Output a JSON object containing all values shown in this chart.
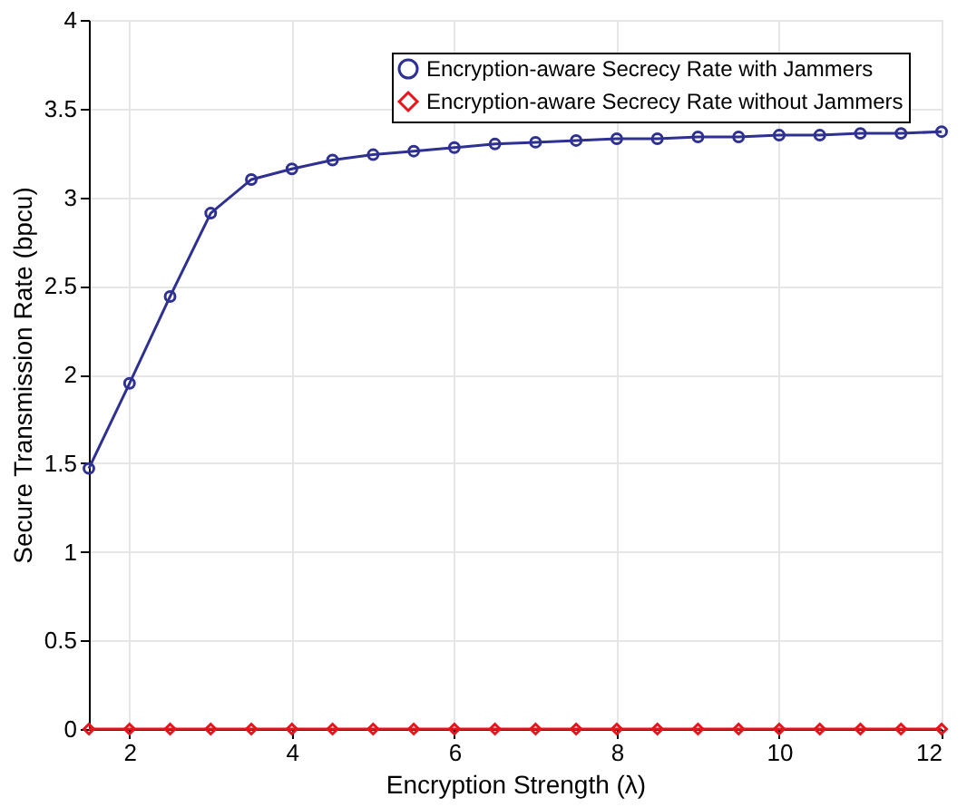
{
  "chart_data": {
    "type": "line",
    "xlabel": "Encryption Strength (λ)",
    "ylabel": "Secure Transmission Rate (bpcu)",
    "x": [
      1.5,
      2,
      2.5,
      3,
      3.5,
      4,
      4.5,
      5,
      5.5,
      6,
      6.5,
      7,
      7.5,
      8,
      8.5,
      9,
      9.5,
      10,
      10.5,
      11,
      11.5,
      12
    ],
    "series": [
      {
        "name": "Encryption-aware Secrecy Rate with Jammers",
        "color": "#2e3192",
        "marker": "circle",
        "values": [
          1.47,
          1.95,
          2.44,
          2.91,
          3.1,
          3.16,
          3.21,
          3.24,
          3.26,
          3.28,
          3.3,
          3.31,
          3.32,
          3.33,
          3.33,
          3.34,
          3.34,
          3.35,
          3.35,
          3.36,
          3.36,
          3.37
        ]
      },
      {
        "name": "Encryption-aware Secrecy Rate without Jammers",
        "color": "#e8141b",
        "marker": "diamond",
        "values": [
          0,
          0,
          0,
          0,
          0,
          0,
          0,
          0,
          0,
          0,
          0,
          0,
          0,
          0,
          0,
          0,
          0,
          0,
          0,
          0,
          0,
          0
        ]
      }
    ],
    "xlim": [
      1.5,
      12
    ],
    "xticks": [
      2,
      4,
      6,
      8,
      10,
      12
    ],
    "ylim": [
      0,
      4
    ],
    "yticks": [
      0,
      0.5,
      1,
      1.5,
      2,
      2.5,
      3,
      3.5,
      4
    ],
    "grid": true,
    "legend": "top right",
    "line_style": "solid"
  }
}
